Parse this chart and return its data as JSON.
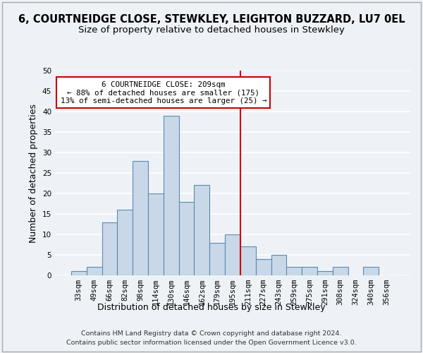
{
  "title": "6, COURTNEIDGE CLOSE, STEWKLEY, LEIGHTON BUZZARD, LU7 0EL",
  "subtitle": "Size of property relative to detached houses in Stewkley",
  "xlabel": "Distribution of detached houses by size in Stewkley",
  "ylabel": "Number of detached properties",
  "footer_line1": "Contains HM Land Registry data © Crown copyright and database right 2024.",
  "footer_line2": "Contains public sector information licensed under the Open Government Licence v3.0.",
  "bins": [
    "33sqm",
    "49sqm",
    "66sqm",
    "82sqm",
    "98sqm",
    "114sqm",
    "130sqm",
    "146sqm",
    "162sqm",
    "179sqm",
    "195sqm",
    "211sqm",
    "227sqm",
    "243sqm",
    "259sqm",
    "275sqm",
    "291sqm",
    "308sqm",
    "324sqm",
    "340sqm",
    "356sqm"
  ],
  "values": [
    1,
    2,
    13,
    16,
    28,
    20,
    39,
    18,
    22,
    8,
    10,
    7,
    4,
    5,
    2,
    2,
    1,
    2,
    0,
    2,
    0
  ],
  "bar_color": "#c8d8e8",
  "bar_edge_color": "#5a8ab0",
  "annotation_text": "6 COURTNEIDGE CLOSE: 209sqm\n← 88% of detached houses are smaller (175)\n13% of semi-detached houses are larger (25) →",
  "annotation_box_color": "#ffffff",
  "annotation_box_edge": "#cc0000",
  "vline_color": "#cc0000",
  "vline_x": 10.5,
  "ylim": [
    0,
    50
  ],
  "yticks": [
    0,
    5,
    10,
    15,
    20,
    25,
    30,
    35,
    40,
    45,
    50
  ],
  "background_color": "#eef2f7",
  "grid_color": "#ffffff",
  "title_fontsize": 10.5,
  "subtitle_fontsize": 9.5,
  "axis_label_fontsize": 9,
  "tick_fontsize": 7.5,
  "footer_fontsize": 6.8
}
